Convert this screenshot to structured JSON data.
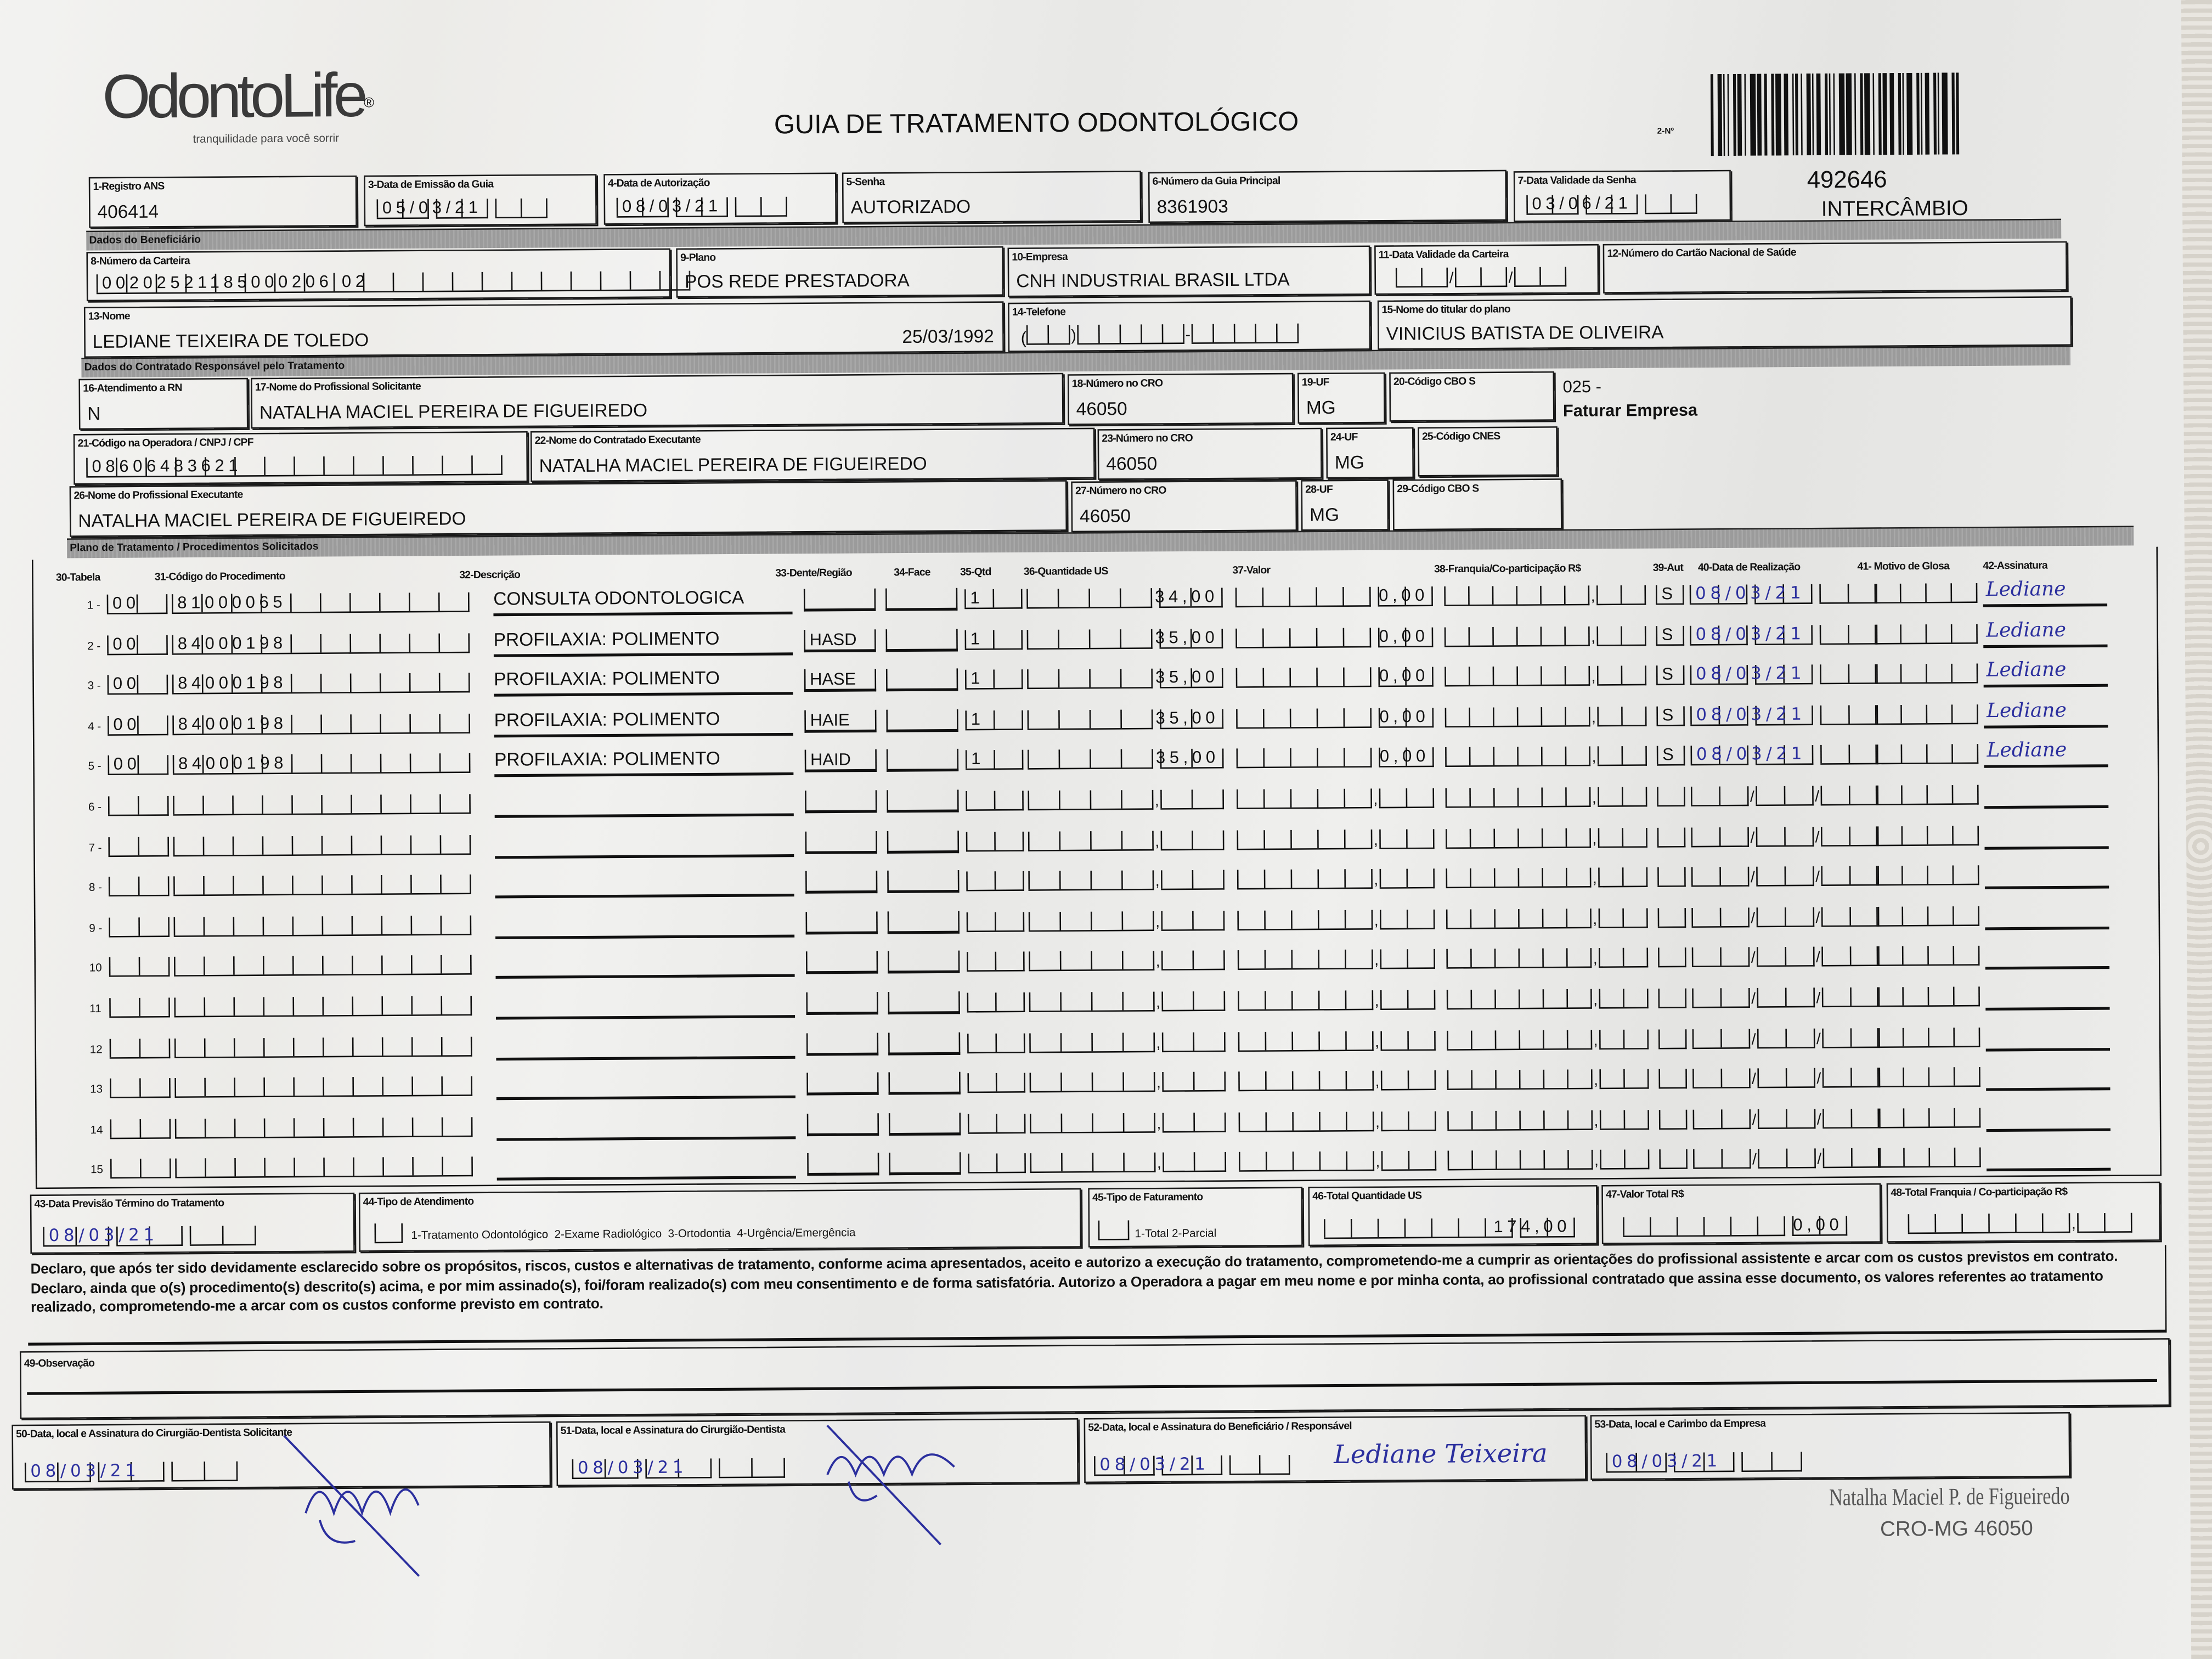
{
  "logo": {
    "brand": "OdontoLife",
    "registered": "®",
    "tagline": "tranquilidade para você sorrir"
  },
  "title": "GUIA DE TRATAMENTO ODONTOLÓGICO",
  "guide_number_label": "2-Nº",
  "side": {
    "code": "492646",
    "type": "INTERCÂMBIO",
    "billing_code": "025 -",
    "billing": "Faturar Empresa"
  },
  "sections": {
    "beneficiary": "Dados do Beneficiário",
    "contracted": "Dados do Contratado Responsável pelo Tratamento",
    "plan": "Plano de Tratamento / Procedimentos Solicitados"
  },
  "fields": {
    "f1": {
      "label": "1-Registro ANS",
      "value": "406414"
    },
    "f3": {
      "label": "3-Data de Emissão da Guia",
      "value": "05/03/21"
    },
    "f4": {
      "label": "4-Data de Autorização",
      "value": "08/03/21"
    },
    "f5": {
      "label": "5-Senha",
      "value": "AUTORIZADO"
    },
    "f6": {
      "label": "6-Número da Guia Principal",
      "value": "8361903"
    },
    "f7": {
      "label": "7-Data Validade da Senha",
      "value": "03/06/21"
    },
    "f8": {
      "label": "8-Número da Carteira",
      "value": "00202521185000206 02"
    },
    "f9": {
      "label": "9-Plano",
      "value": "POS REDE PRESTADORA"
    },
    "f10": {
      "label": "10-Empresa",
      "value": "CNH INDUSTRIAL BRASIL LTDA"
    },
    "f11": {
      "label": "11-Data Validade da Carteira",
      "value": ""
    },
    "f12": {
      "label": "12-Número do Cartão Nacional de Saúde",
      "value": ""
    },
    "f13": {
      "label": "13-Nome",
      "value": "LEDIANE TEIXEIRA DE TOLEDO",
      "birth": "25/03/1992"
    },
    "f14": {
      "label": "14-Telefone",
      "value": ""
    },
    "f15": {
      "label": "15-Nome do titular do plano",
      "value": "VINICIUS BATISTA DE OLIVEIRA"
    },
    "f16": {
      "label": "16-Atendimento a RN",
      "value": "N"
    },
    "f17": {
      "label": "17-Nome do Profissional Solicitante",
      "value": "NATALHA MACIEL PEREIRA DE FIGUEIREDO"
    },
    "f18": {
      "label": "18-Número no CRO",
      "value": "46050"
    },
    "f19": {
      "label": "19-UF",
      "value": "MG"
    },
    "f20": {
      "label": "20-Código CBO S",
      "value": ""
    },
    "f21": {
      "label": "21-Código na Operadora / CNPJ / CPF",
      "value": "08606483621"
    },
    "f22": {
      "label": "22-Nome do Contratado Executante",
      "value": "NATALHA MACIEL PEREIRA DE FIGUEIREDO"
    },
    "f23": {
      "label": "23-Número no CRO",
      "value": "46050"
    },
    "f24": {
      "label": "24-UF",
      "value": "MG"
    },
    "f25": {
      "label": "25-Código CNES",
      "value": ""
    },
    "f26": {
      "label": "26-Nome do Profissional Executante",
      "value": "NATALHA MACIEL PEREIRA DE FIGUEIREDO"
    },
    "f27": {
      "label": "27-Número no CRO",
      "value": "46050"
    },
    "f28": {
      "label": "28-UF",
      "value": "MG"
    },
    "f29": {
      "label": "29-Código CBO S",
      "value": ""
    }
  },
  "table": {
    "headers": {
      "tabela": "30-Tabela",
      "codigo": "31-Código do Procedimento",
      "descricao": "32-Descrição",
      "dente": "33-Dente/Região",
      "face": "34-Face",
      "qtd": "35-Qtd",
      "qtd_us": "36-Quantidade US",
      "valor": "37-Valor",
      "franquia": "38-Franquia/Co-participação R$",
      "aut": "39-Aut",
      "data": "40-Data de Realização",
      "glosa": "41- Motivo de Glosa",
      "assinatura": "42-Assinatura"
    },
    "rows": [
      {
        "num": "1 -",
        "tabela": "00",
        "codigo": "81000065",
        "descricao": "CONSULTA ODONTOLOGICA",
        "dente": "",
        "face": "",
        "qtd": "1",
        "qtd_us": "34,00",
        "valor": "0,00",
        "franquia": "",
        "aut": "S",
        "data": "08/03/21",
        "glosa": "",
        "assinatura": "Lediane"
      },
      {
        "num": "2 -",
        "tabela": "00",
        "codigo": "84000198",
        "descricao": "PROFILAXIA: POLIMENTO",
        "dente": "HASD",
        "face": "",
        "qtd": "1",
        "qtd_us": "35,00",
        "valor": "0,00",
        "franquia": "",
        "aut": "S",
        "data": "08/03/21",
        "glosa": "",
        "assinatura": "Lediane"
      },
      {
        "num": "3 -",
        "tabela": "00",
        "codigo": "84000198",
        "descricao": "PROFILAXIA: POLIMENTO",
        "dente": "HASE",
        "face": "",
        "qtd": "1",
        "qtd_us": "35,00",
        "valor": "0,00",
        "franquia": "",
        "aut": "S",
        "data": "08/03/21",
        "glosa": "",
        "assinatura": "Lediane"
      },
      {
        "num": "4 -",
        "tabela": "00",
        "codigo": "84000198",
        "descricao": "PROFILAXIA: POLIMENTO",
        "dente": "HAIE",
        "face": "",
        "qtd": "1",
        "qtd_us": "35,00",
        "valor": "0,00",
        "franquia": "",
        "aut": "S",
        "data": "08/03/21",
        "glosa": "",
        "assinatura": "Lediane"
      },
      {
        "num": "5 -",
        "tabela": "00",
        "codigo": "84000198",
        "descricao": "PROFILAXIA: POLIMENTO",
        "dente": "HAID",
        "face": "",
        "qtd": "1",
        "qtd_us": "35,00",
        "valor": "0,00",
        "franquia": "",
        "aut": "S",
        "data": "08/03/21",
        "glosa": "",
        "assinatura": "Lediane"
      },
      {
        "num": "6 -"
      },
      {
        "num": "7 -"
      },
      {
        "num": "8 -"
      },
      {
        "num": "9 -"
      },
      {
        "num": "10"
      },
      {
        "num": "11"
      },
      {
        "num": "12"
      },
      {
        "num": "13"
      },
      {
        "num": "14"
      },
      {
        "num": "15"
      }
    ]
  },
  "footer": {
    "f43": {
      "label": "43-Data Previsão Término do Tratamento",
      "value": "08/03/21"
    },
    "f44": {
      "label": "44-Tipo de Atendimento",
      "options": "1-Tratamento Odontológico  2-Exame Radiológico  3-Ortodontia  4-Urgência/Emergência",
      "value": ""
    },
    "f45": {
      "label": "45-Tipo de Faturamento",
      "options": "1-Total  2-Parcial",
      "value": ""
    },
    "f46": {
      "label": "46-Total Quantidade US",
      "value": "174,00"
    },
    "f47": {
      "label": "47-Valor Total R$",
      "value": "0,00"
    },
    "f48": {
      "label": "48-Total Franquia / Co-participação R$",
      "value": ""
    },
    "f49": {
      "label": "49-Observação",
      "value": ""
    },
    "f50": {
      "label": "50-Data, local e Assinatura do Cirurgião-Dentista Solicitante",
      "value": "08/03/21"
    },
    "f51": {
      "label": "51-Data, local e Assinatura do Cirurgião-Dentista",
      "value": "08/03/21"
    },
    "f52": {
      "label": "52-Data, local e Assinatura do Beneficiário / Responsável",
      "value": "08/03/21",
      "signature": "Lediane Teixeira"
    },
    "f53": {
      "label": "53-Data, local e Carimbo da Empresa",
      "value": "08/03/21"
    }
  },
  "declaration": "Declaro, que após ter sido devidamente esclarecido sobre os propósitos, riscos, custos e alternativas de tratamento, conforme acima apresentados, aceito e autorizo a execução do tratamento, comprometendo-me a cumprir as orientações do profissional assistente e arcar com os custos previstos em contrato. Declaro, ainda que o(s) procedimento(s) descrito(s) acima, e por mim assinado(s), foi/foram realizado(s) com meu consentimento e de forma satisfatória. Autorizo a Operadora a pagar em meu nome e por minha conta, ao profissional contratado que assina esse documento, os valores referentes ao tratamento realizado, comprometendo-me a arcar com os custos conforme previsto em contrato.",
  "stamp": {
    "name": "Natalha Maciel P. de Figueiredo",
    "cro": "CRO-MG 46050"
  },
  "colors": {
    "ink": "#2b2f9e",
    "section_bar": "#9b9b9b",
    "paper": "#f1f1ef"
  }
}
